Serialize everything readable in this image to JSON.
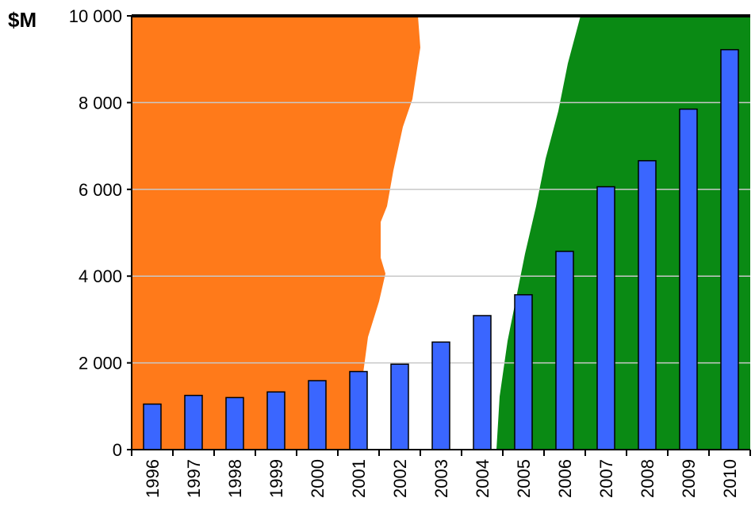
{
  "chart_data": {
    "type": "bar",
    "unit_label": "$M",
    "categories": [
      "1996",
      "1997",
      "1998",
      "1999",
      "2000",
      "2001",
      "2002",
      "2003",
      "2004",
      "2005",
      "2006",
      "2007",
      "2008",
      "2009",
      "2010"
    ],
    "values": [
      1050,
      1250,
      1200,
      1330,
      1590,
      1800,
      1970,
      2480,
      3090,
      3570,
      4570,
      6060,
      6660,
      7850,
      9220
    ],
    "ylim": [
      0,
      10000
    ],
    "yticks": [
      0,
      2000,
      4000,
      6000,
      8000,
      10000
    ],
    "ytick_labels": [
      "0",
      "2 000",
      "4 000",
      "6 000",
      "8 000",
      "10 000"
    ],
    "grid": true,
    "bar_color": "#3a66ff",
    "background_bands": {
      "orange": "#ff7a1a",
      "white": "#ffffff",
      "green": "#0a8a14"
    }
  }
}
